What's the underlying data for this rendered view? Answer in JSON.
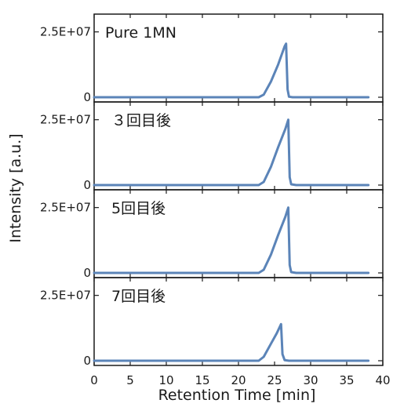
{
  "chart_data": {
    "type": "line",
    "xlabel": "Retention Time [min]",
    "ylabel": "Intensity [a.u.]",
    "xlim": [
      0,
      40
    ],
    "x_ticks": [
      0,
      5,
      10,
      15,
      20,
      25,
      30,
      35,
      40
    ],
    "ylim": [
      0,
      30000000
    ],
    "y_tick_labels": [
      "2.5E+07",
      "0"
    ],
    "y_tick_values": [
      25000000,
      0
    ],
    "line_color": "#5b84b8",
    "grid": false,
    "panels": [
      {
        "label": "Pure 1MN",
        "points": [
          [
            0,
            0
          ],
          [
            22.8,
            0
          ],
          [
            23.5,
            1000000
          ],
          [
            24.5,
            6000000
          ],
          [
            25.5,
            12500000
          ],
          [
            26.4,
            19500000
          ],
          [
            26.6,
            20500000
          ],
          [
            26.8,
            3000000
          ],
          [
            27.0,
            200000
          ],
          [
            27.5,
            0
          ],
          [
            38,
            0
          ]
        ]
      },
      {
        "label": "３回目後",
        "points": [
          [
            0,
            0
          ],
          [
            22.8,
            0
          ],
          [
            23.5,
            1200000
          ],
          [
            24.5,
            7000000
          ],
          [
            25.5,
            14500000
          ],
          [
            26.5,
            21500000
          ],
          [
            26.9,
            25000000
          ],
          [
            27.1,
            3000000
          ],
          [
            27.3,
            300000
          ],
          [
            28,
            0
          ],
          [
            38,
            0
          ]
        ]
      },
      {
        "label": "5回目後",
        "points": [
          [
            0,
            0
          ],
          [
            22.8,
            0
          ],
          [
            23.5,
            1200000
          ],
          [
            24.5,
            7000000
          ],
          [
            25.5,
            14500000
          ],
          [
            26.5,
            21500000
          ],
          [
            26.9,
            25000000
          ],
          [
            27.1,
            3000000
          ],
          [
            27.3,
            300000
          ],
          [
            28,
            0
          ],
          [
            38,
            0
          ]
        ]
      },
      {
        "label": "7回目後",
        "points": [
          [
            0,
            0
          ],
          [
            22.8,
            0
          ],
          [
            23.5,
            1500000
          ],
          [
            24.5,
            6500000
          ],
          [
            25.3,
            10500000
          ],
          [
            25.9,
            14000000
          ],
          [
            26.1,
            2500000
          ],
          [
            26.4,
            200000
          ],
          [
            27,
            0
          ],
          [
            38,
            0
          ]
        ]
      }
    ]
  }
}
